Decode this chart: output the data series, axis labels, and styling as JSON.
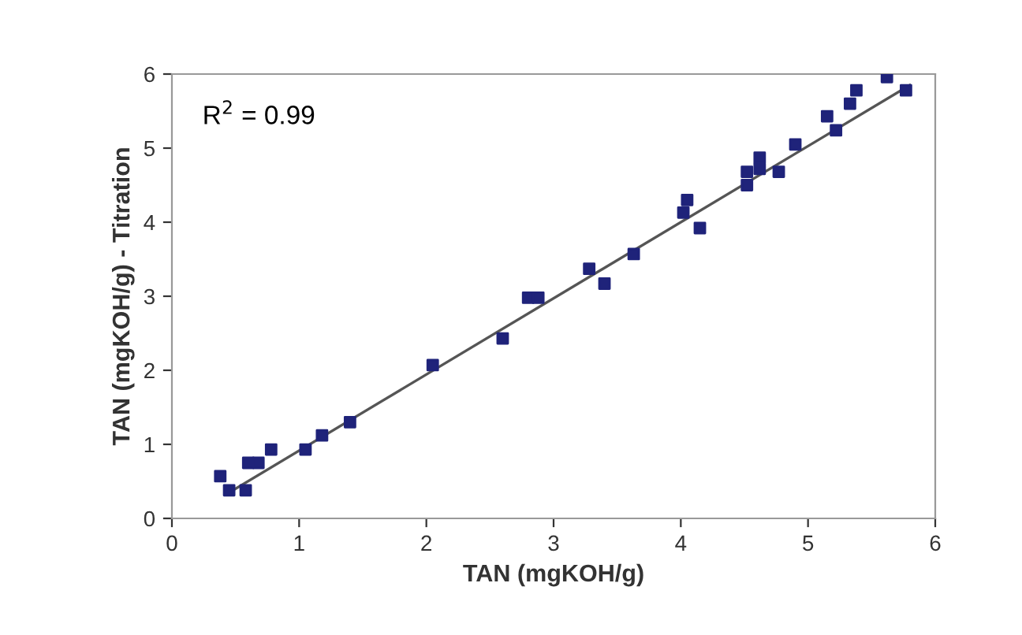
{
  "chart_data": {
    "type": "scatter",
    "xlabel": "TAN (mgKOH/g)",
    "ylabel": "TAN (mgKOH/g) - Titration",
    "annotations": [
      "R$^{2}$ = 0.99"
    ],
    "xlim": [
      0,
      6
    ],
    "ylim": [
      0,
      6
    ],
    "xticks": [
      0,
      1,
      2,
      3,
      4,
      5,
      6
    ],
    "yticks": [
      0,
      1,
      2,
      3,
      4,
      5,
      6
    ],
    "grid": false,
    "legend": false,
    "marker": "square",
    "series": [
      {
        "color": "#1f237a",
        "x": [
          0.38,
          0.45,
          0.58,
          0.6,
          0.68,
          0.78,
          1.05,
          1.18,
          1.4,
          2.05,
          2.6,
          2.8,
          2.88,
          3.28,
          3.4,
          3.63,
          4.02,
          4.05,
          4.15,
          4.52,
          4.52,
          4.62,
          4.62,
          4.77,
          4.9,
          5.15,
          5.22,
          5.33,
          5.38,
          5.62,
          5.77
        ],
        "values": [
          0.57,
          0.38,
          0.38,
          0.75,
          0.75,
          0.93,
          0.93,
          1.12,
          1.3,
          2.07,
          2.43,
          2.98,
          2.98,
          3.37,
          3.17,
          3.57,
          4.13,
          4.3,
          3.92,
          4.5,
          4.68,
          4.72,
          4.87,
          4.68,
          5.05,
          5.43,
          5.24,
          5.6,
          5.78,
          5.96,
          5.78
        ]
      },
      {
        "type": "line",
        "marker": "none",
        "color": "#555555",
        "x": [
          0.45,
          5.8
        ],
        "values": [
          0.35,
          5.85
        ]
      }
    ]
  }
}
